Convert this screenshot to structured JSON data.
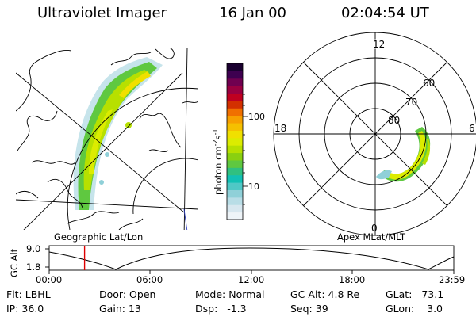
{
  "header": {
    "instrument": "Ultraviolet Imager",
    "date": "16 Jan 00",
    "time": "02:04:54 UT"
  },
  "left_panel": {
    "label": "Geographic Lat/Lon"
  },
  "right_panel": {
    "label": "Apex MLat/MLT",
    "mlt_labels": [
      "12",
      "18",
      "6",
      "0"
    ],
    "mlat_labels": [
      "60",
      "70",
      "80"
    ]
  },
  "colorbar": {
    "unit_label": "photon cm",
    "unit_sup1": "-2",
    "unit_mid": "s",
    "unit_sup2": "-1",
    "ticks": [
      "100",
      "10"
    ],
    "colors": [
      "#eef4f8",
      "#d7e7ef",
      "#b8dde6",
      "#8fd0d8",
      "#4fc8c6",
      "#12c0b4",
      "#30c080",
      "#5fc840",
      "#8ad010",
      "#b7e000",
      "#dcec00",
      "#f0e000",
      "#f5c000",
      "#f7a000",
      "#f07000",
      "#d33000",
      "#c00020",
      "#9a0040",
      "#700050",
      "#3e0050",
      "#1a0030"
    ]
  },
  "orbit_plot": {
    "ylabel": "GC Alt",
    "yticks": [
      "9.0",
      "1.8"
    ],
    "xticks": [
      "00:00",
      "06:00",
      "12:00",
      "18:00",
      "23:59"
    ],
    "current_time_fraction": 0.0874,
    "marker_color": "#dd0000"
  },
  "status": {
    "filter_label": "Flt:",
    "filter": "LBHL",
    "door_label": "Door:",
    "door": "Open",
    "mode_label": "Mode:",
    "mode": "Normal",
    "gc_alt_label": "GC Alt:",
    "gc_alt": "4.8 Re",
    "glat_label": "GLat:",
    "glat": "73.1",
    "ip_label": "IP:",
    "ip": "36.0",
    "gain_label": "Gain:",
    "gain": "13",
    "dsp_label": "Dsp:",
    "dsp": "-1.3",
    "seq_label": "Seq:",
    "seq": "39",
    "glon_label": "GLon:",
    "glon": "3.0"
  }
}
